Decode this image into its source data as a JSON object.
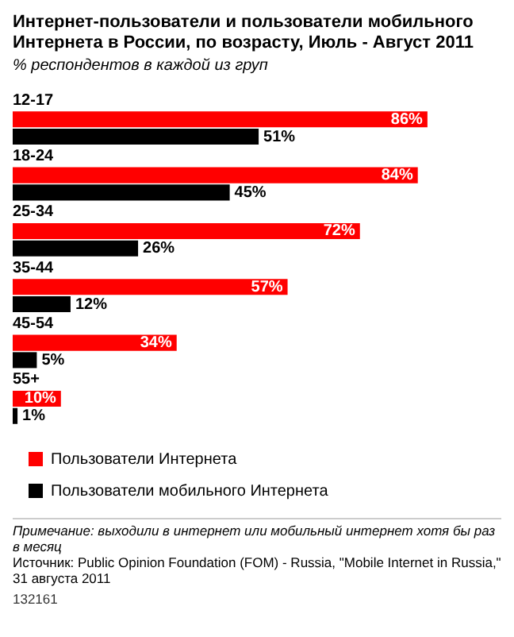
{
  "chart_data": {
    "type": "bar",
    "orientation": "horizontal",
    "title": "Интернет-пользователи и пользователи мобильного Интернета в России, по возрасту, Июль - Август 2011",
    "subtitle": "% респондентов в каждой из груп",
    "categories": [
      "12-17",
      "18-24",
      "25-34",
      "35-44",
      "45-54",
      "55+"
    ],
    "series": [
      {
        "name": "Пользователи Интернета",
        "color": "#ff0000",
        "values": [
          86,
          84,
          72,
          57,
          34,
          10
        ],
        "value_labels": [
          "86%",
          "84%",
          "72%",
          "57%",
          "34%",
          "10%"
        ]
      },
      {
        "name": "Пользователи мобильного Интернета",
        "color": "#000000",
        "values": [
          51,
          45,
          26,
          12,
          5,
          1
        ],
        "value_labels": [
          "51%",
          "45%",
          "26%",
          "12%",
          "5%",
          "1%"
        ]
      }
    ],
    "legend": "bottom",
    "annotations": [
      "Примечание: выходили в интернет или мобильный интернет хотя бы раз в месяц",
      "Источник: Public Opinion Foundation (FOM) - Russia, \"Mobile Internet in Russia,\" 31 августа 2011",
      "132161"
    ]
  }
}
